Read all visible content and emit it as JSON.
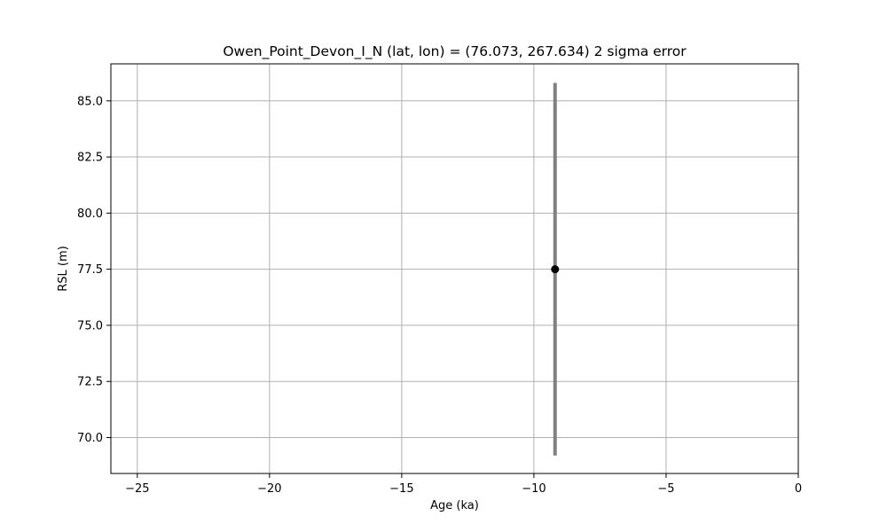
{
  "chart_data": {
    "type": "scatter",
    "title": "Owen_Point_Devon_I_N (lat, lon) = (76.073, 267.634)  2 sigma error",
    "xlabel": "Age (ka)",
    "ylabel": "RSL (m)",
    "xlim": [
      -26,
      0
    ],
    "ylim": [
      68.4,
      86.65
    ],
    "xticks": [
      -25,
      -20,
      -15,
      -10,
      -5,
      0
    ],
    "xtick_labels": [
      "−25",
      "−20",
      "−15",
      "−10",
      "−5",
      "0"
    ],
    "yticks": [
      70.0,
      72.5,
      75.0,
      77.5,
      80.0,
      82.5,
      85.0
    ],
    "ytick_labels": [
      "70.0",
      "72.5",
      "75.0",
      "77.5",
      "80.0",
      "82.5",
      "85.0"
    ],
    "grid": true,
    "points": [
      {
        "x": -9.2,
        "y": 77.5,
        "yerr_low": 69.2,
        "yerr_high": 85.8
      }
    ],
    "colors": {
      "point": "#000000",
      "errorbar": "#808080",
      "grid": "#b0b0b0"
    }
  }
}
